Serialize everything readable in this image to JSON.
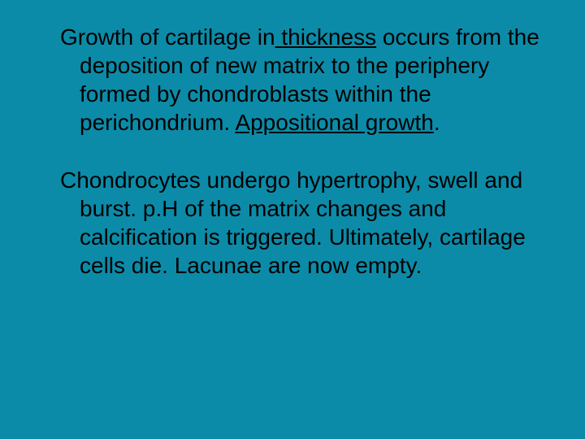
{
  "background_color": "#0c8ba8",
  "text_color": "#000000",
  "font_family": "Arial",
  "font_size_pt": 28,
  "paragraphs": [
    {
      "segments": [
        {
          "text": "Growth of cartilage in",
          "underline": false
        },
        {
          "text": " thickness",
          "underline": true
        },
        {
          "text": " occurs from the deposition of new matrix to the periphery formed by chondroblasts within the perichondrium. ",
          "underline": false
        },
        {
          "text": "Appositional growth",
          "underline": true
        },
        {
          "text": ".",
          "underline": false
        }
      ]
    },
    {
      "segments": [
        {
          "text": "Chondrocytes undergo hypertrophy, swell and burst. p.H of the matrix changes and calcification is triggered. Ultimately, cartilage cells die. Lacunae are now empty.",
          "underline": false
        }
      ]
    }
  ]
}
